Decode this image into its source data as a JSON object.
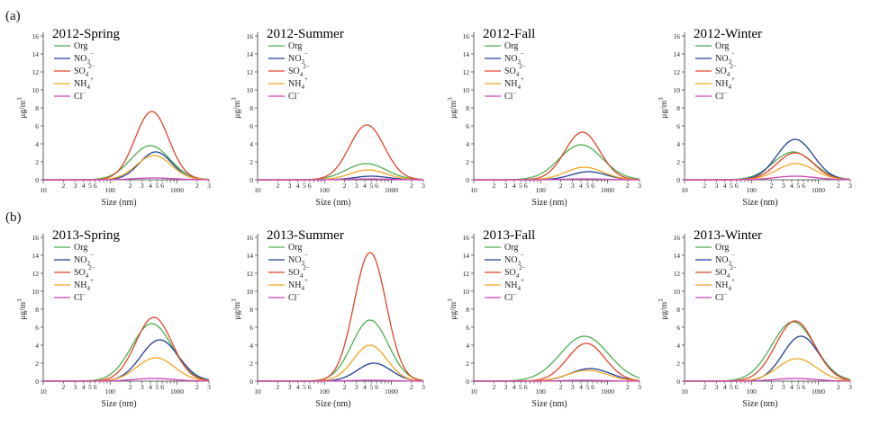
{
  "figure": {
    "row_labels": [
      "(a)",
      "(b)"
    ],
    "x_axis_label": "Size (nm)",
    "y_axis_label": "μg/m",
    "y_axis_label_sup": "3",
    "legend": [
      {
        "key": "Org",
        "text": "Org",
        "color": "#4caf50"
      },
      {
        "key": "NO3",
        "text": "NO",
        "sub": "3",
        "sup": "−",
        "color": "#1f3f99"
      },
      {
        "key": "SO4",
        "text": "SO",
        "sub": "4",
        "sup": "2−",
        "color": "#e0442a"
      },
      {
        "key": "NH4",
        "text": "NH",
        "sub": "4",
        "sup": "+",
        "color": "#f2a520"
      },
      {
        "key": "Cl",
        "text": "Cl",
        "sup": "−",
        "color": "#d040b8"
      }
    ],
    "y_ticks": [
      0,
      2,
      4,
      6,
      8,
      10,
      12,
      14,
      16
    ],
    "x_major_ticks": [
      "10",
      "100",
      "1000"
    ],
    "x_minor_tick_labels": [
      "2",
      "3",
      "4",
      "5",
      "6"
    ]
  },
  "chart_data": [
    {
      "type": "line",
      "row": 0,
      "title": "2012-Spring",
      "xlabel": "Size (nm)",
      "ylabel": "μg/m3",
      "xscale": "log",
      "xlim": [
        10,
        3000
      ],
      "ylim": [
        0,
        16
      ],
      "series": [
        {
          "name": "Org",
          "peak": 3.8,
          "mode_nm": 400,
          "sigma": 0.29
        },
        {
          "name": "NO3-",
          "peak": 3.1,
          "mode_nm": 480,
          "sigma": 0.24
        },
        {
          "name": "SO42-",
          "peak": 7.6,
          "mode_nm": 420,
          "sigma": 0.25
        },
        {
          "name": "NH4+",
          "peak": 2.7,
          "mode_nm": 450,
          "sigma": 0.26
        },
        {
          "name": "Cl-",
          "peak": 0.2,
          "mode_nm": 450,
          "sigma": 0.3
        }
      ]
    },
    {
      "type": "line",
      "row": 0,
      "title": "2012-Summer",
      "xlabel": "Size (nm)",
      "ylabel": "μg/m3",
      "xscale": "log",
      "xlim": [
        10,
        3000
      ],
      "ylim": [
        0,
        16
      ],
      "series": [
        {
          "name": "Org",
          "peak": 1.8,
          "mode_nm": 420,
          "sigma": 0.3
        },
        {
          "name": "NO3-",
          "peak": 0.4,
          "mode_nm": 500,
          "sigma": 0.25
        },
        {
          "name": "SO42-",
          "peak": 6.1,
          "mode_nm": 430,
          "sigma": 0.26
        },
        {
          "name": "NH4+",
          "peak": 1.1,
          "mode_nm": 450,
          "sigma": 0.27
        },
        {
          "name": "Cl-",
          "peak": 0.1,
          "mode_nm": 450,
          "sigma": 0.3
        }
      ]
    },
    {
      "type": "line",
      "row": 0,
      "title": "2012-Fall",
      "xlabel": "Size (nm)",
      "ylabel": "μg/m3",
      "xscale": "log",
      "xlim": [
        10,
        3000
      ],
      "ylim": [
        0,
        16
      ],
      "series": [
        {
          "name": "Org",
          "peak": 3.9,
          "mode_nm": 400,
          "sigma": 0.32
        },
        {
          "name": "NO3-",
          "peak": 0.9,
          "mode_nm": 520,
          "sigma": 0.26
        },
        {
          "name": "SO42-",
          "peak": 5.3,
          "mode_nm": 420,
          "sigma": 0.26
        },
        {
          "name": "NH4+",
          "peak": 1.4,
          "mode_nm": 450,
          "sigma": 0.28
        },
        {
          "name": "Cl-",
          "peak": 0.1,
          "mode_nm": 450,
          "sigma": 0.3
        }
      ]
    },
    {
      "type": "line",
      "row": 0,
      "title": "2012-Winter",
      "xlabel": "Size (nm)",
      "ylabel": "μg/m3",
      "xscale": "log",
      "xlim": [
        10,
        3000
      ],
      "ylim": [
        0,
        16
      ],
      "series": [
        {
          "name": "Org",
          "peak": 3.1,
          "mode_nm": 420,
          "sigma": 0.3
        },
        {
          "name": "NO3-",
          "peak": 4.5,
          "mode_nm": 450,
          "sigma": 0.27
        },
        {
          "name": "SO42-",
          "peak": 3.0,
          "mode_nm": 450,
          "sigma": 0.27
        },
        {
          "name": "NH4+",
          "peak": 1.8,
          "mode_nm": 460,
          "sigma": 0.28
        },
        {
          "name": "Cl-",
          "peak": 0.4,
          "mode_nm": 450,
          "sigma": 0.3
        }
      ]
    },
    {
      "type": "line",
      "row": 1,
      "title": "2013-Spring",
      "xlabel": "Size (nm)",
      "ylabel": "μg/m3",
      "xscale": "log",
      "xlim": [
        10,
        3000
      ],
      "ylim": [
        0,
        16
      ],
      "series": [
        {
          "name": "Org",
          "peak": 6.4,
          "mode_nm": 420,
          "sigma": 0.3
        },
        {
          "name": "NO3-",
          "peak": 4.6,
          "mode_nm": 550,
          "sigma": 0.28
        },
        {
          "name": "SO42-",
          "peak": 7.1,
          "mode_nm": 450,
          "sigma": 0.27
        },
        {
          "name": "NH4+",
          "peak": 2.6,
          "mode_nm": 480,
          "sigma": 0.28
        },
        {
          "name": "Cl-",
          "peak": 0.3,
          "mode_nm": 450,
          "sigma": 0.3
        }
      ]
    },
    {
      "type": "line",
      "row": 1,
      "title": "2013-Summer",
      "xlabel": "Size (nm)",
      "ylabel": "μg/m3",
      "xscale": "log",
      "xlim": [
        10,
        3000
      ],
      "ylim": [
        0,
        16
      ],
      "series": [
        {
          "name": "Org",
          "peak": 6.8,
          "mode_nm": 480,
          "sigma": 0.27
        },
        {
          "name": "NO3-",
          "peak": 2.0,
          "mode_nm": 550,
          "sigma": 0.25
        },
        {
          "name": "SO42-",
          "peak": 14.3,
          "mode_nm": 480,
          "sigma": 0.24
        },
        {
          "name": "NH4+",
          "peak": 4.0,
          "mode_nm": 480,
          "sigma": 0.25
        },
        {
          "name": "Cl-",
          "peak": 0.1,
          "mode_nm": 480,
          "sigma": 0.3
        }
      ]
    },
    {
      "type": "line",
      "row": 1,
      "title": "2013-Fall",
      "xlabel": "Size (nm)",
      "ylabel": "μg/m3",
      "xscale": "log",
      "xlim": [
        10,
        3000
      ],
      "ylim": [
        0,
        16
      ],
      "series": [
        {
          "name": "Org",
          "peak": 5.0,
          "mode_nm": 450,
          "sigma": 0.36
        },
        {
          "name": "NO3-",
          "peak": 1.4,
          "mode_nm": 550,
          "sigma": 0.3
        },
        {
          "name": "SO42-",
          "peak": 4.2,
          "mode_nm": 480,
          "sigma": 0.28
        },
        {
          "name": "NH4+",
          "peak": 1.2,
          "mode_nm": 500,
          "sigma": 0.3
        },
        {
          "name": "Cl-",
          "peak": 0.1,
          "mode_nm": 450,
          "sigma": 0.3
        }
      ]
    },
    {
      "type": "line",
      "row": 1,
      "title": "2013-Winter",
      "xlabel": "Size (nm)",
      "ylabel": "μg/m3",
      "xscale": "log",
      "xlim": [
        10,
        3000
      ],
      "ylim": [
        0,
        16
      ],
      "series": [
        {
          "name": "Org",
          "peak": 6.6,
          "mode_nm": 420,
          "sigma": 0.32
        },
        {
          "name": "NO3-",
          "peak": 5.0,
          "mode_nm": 550,
          "sigma": 0.27
        },
        {
          "name": "SO42-",
          "peak": 6.7,
          "mode_nm": 450,
          "sigma": 0.29
        },
        {
          "name": "NH4+",
          "peak": 2.5,
          "mode_nm": 480,
          "sigma": 0.29
        },
        {
          "name": "Cl-",
          "peak": 0.3,
          "mode_nm": 450,
          "sigma": 0.3
        }
      ]
    }
  ]
}
